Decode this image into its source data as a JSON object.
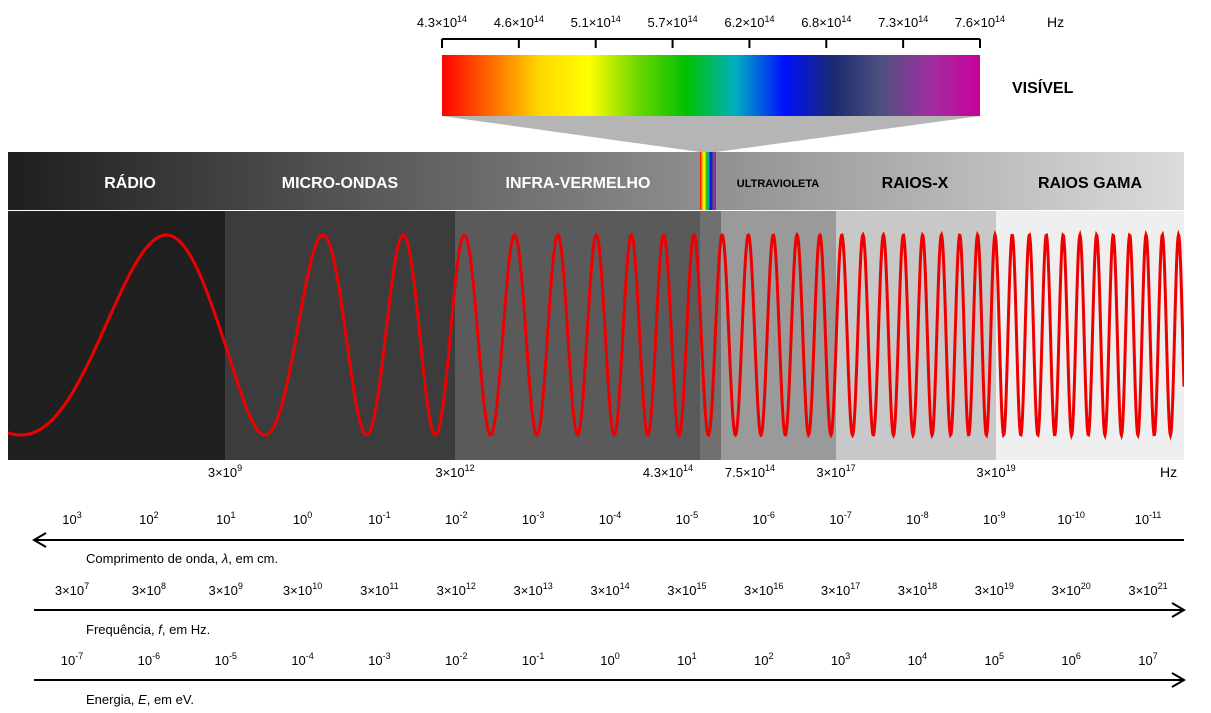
{
  "visible": {
    "label": "VISÍVEL",
    "unit": "Hz",
    "ticks": [
      {
        "m": "4.3",
        "e": "14"
      },
      {
        "m": "4.6",
        "e": "14"
      },
      {
        "m": "5.1",
        "e": "14"
      },
      {
        "m": "5.7",
        "e": "14"
      },
      {
        "m": "6.2",
        "e": "14"
      },
      {
        "m": "6.8",
        "e": "14"
      },
      {
        "m": "7.3",
        "e": "14"
      },
      {
        "m": "7.6",
        "e": "14"
      }
    ],
    "gradient_colors": [
      "#ff0000",
      "#ff6a00",
      "#ffd800",
      "#ffff00",
      "#6dd600",
      "#00c000",
      "#00b0c0",
      "#0010ff",
      "#1a2a70",
      "#505080",
      "#a02ea0",
      "#c8009a"
    ]
  },
  "bands": [
    {
      "id": "radio",
      "label": "RÁDIO",
      "color": "#202020",
      "header_color": "#2b2b2b",
      "dark_text": false
    },
    {
      "id": "micro",
      "label": "MICRO-ONDAS",
      "color": "#3c3c3c",
      "header_color": "#3f3f3f",
      "dark_text": false
    },
    {
      "id": "infra",
      "label": "INFRA-VERMELHO",
      "color": "#5a5a5a",
      "header_color": "#555555",
      "dark_text": false
    },
    {
      "id": "visible-strip",
      "label": "",
      "color": "#707070",
      "header_color": "#6a6a6a",
      "dark_text": false
    },
    {
      "id": "uv",
      "label": "ULTRAVIOLETA",
      "color": "#9a9a9a",
      "header_color": "#7a7a7a",
      "dark_text": true
    },
    {
      "id": "xray",
      "label": "RAIOS-X",
      "color": "#c8c8c8",
      "header_color": "#a6a6a6",
      "dark_text": true
    },
    {
      "id": "gamma",
      "label": "RAIOS GAMA",
      "color": "#efefef",
      "header_color": "#d2d2d2",
      "dark_text": true
    }
  ],
  "wave_color": "#ee0000",
  "boundary_labels": [
    {
      "m": "3×10",
      "e": "9"
    },
    {
      "m": "3×10",
      "e": "12"
    },
    {
      "m": "4.3×10",
      "e": "14"
    },
    {
      "m": "7.5×10",
      "e": "14"
    },
    {
      "m": "3×10",
      "e": "17"
    },
    {
      "m": "3×10",
      "e": "19"
    }
  ],
  "boundary_unit": "Hz",
  "scales": {
    "wavelength": {
      "caption_pre": "Comprimento de onda, ",
      "caption_sym": "λ",
      "caption_post": ", em cm.",
      "arrow": "left",
      "ticks": [
        {
          "m": "10",
          "e": "3"
        },
        {
          "m": "10",
          "e": "2"
        },
        {
          "m": "10",
          "e": "1"
        },
        {
          "m": "10",
          "e": "0"
        },
        {
          "m": "10",
          "e": "-1"
        },
        {
          "m": "10",
          "e": "-2"
        },
        {
          "m": "10",
          "e": "-3"
        },
        {
          "m": "10",
          "e": "-4"
        },
        {
          "m": "10",
          "e": "-5"
        },
        {
          "m": "10",
          "e": "-6"
        },
        {
          "m": "10",
          "e": "-7"
        },
        {
          "m": "10",
          "e": "-8"
        },
        {
          "m": "10",
          "e": "-9"
        },
        {
          "m": "10",
          "e": "-10"
        },
        {
          "m": "10",
          "e": "-11"
        }
      ]
    },
    "frequency": {
      "caption_pre": "Frequência, ",
      "caption_sym": "f",
      "caption_post": ", em Hz.",
      "arrow": "right",
      "ticks": [
        {
          "m": "3×10",
          "e": "7"
        },
        {
          "m": "3×10",
          "e": "8"
        },
        {
          "m": "3×10",
          "e": "9"
        },
        {
          "m": "3×10",
          "e": "10"
        },
        {
          "m": "3×10",
          "e": "11"
        },
        {
          "m": "3×10",
          "e": "12"
        },
        {
          "m": "3×10",
          "e": "13"
        },
        {
          "m": "3×10",
          "e": "14"
        },
        {
          "m": "3×10",
          "e": "15"
        },
        {
          "m": "3×10",
          "e": "16"
        },
        {
          "m": "3×10",
          "e": "17"
        },
        {
          "m": "3×10",
          "e": "18"
        },
        {
          "m": "3×10",
          "e": "19"
        },
        {
          "m": "3×10",
          "e": "20"
        },
        {
          "m": "3×10",
          "e": "21"
        }
      ]
    },
    "energy": {
      "caption_pre": "Energia, ",
      "caption_sym": "E",
      "caption_post": ", em eV.",
      "arrow": "right",
      "ticks": [
        {
          "m": "10",
          "e": "-7"
        },
        {
          "m": "10",
          "e": "-6"
        },
        {
          "m": "10",
          "e": "-5"
        },
        {
          "m": "10",
          "e": "-4"
        },
        {
          "m": "10",
          "e": "-3"
        },
        {
          "m": "10",
          "e": "-2"
        },
        {
          "m": "10",
          "e": "-1"
        },
        {
          "m": "10",
          "e": "0"
        },
        {
          "m": "10",
          "e": "1"
        },
        {
          "m": "10",
          "e": "2"
        },
        {
          "m": "10",
          "e": "3"
        },
        {
          "m": "10",
          "e": "4"
        },
        {
          "m": "10",
          "e": "5"
        },
        {
          "m": "10",
          "e": "6"
        },
        {
          "m": "10",
          "e": "7"
        }
      ]
    }
  }
}
